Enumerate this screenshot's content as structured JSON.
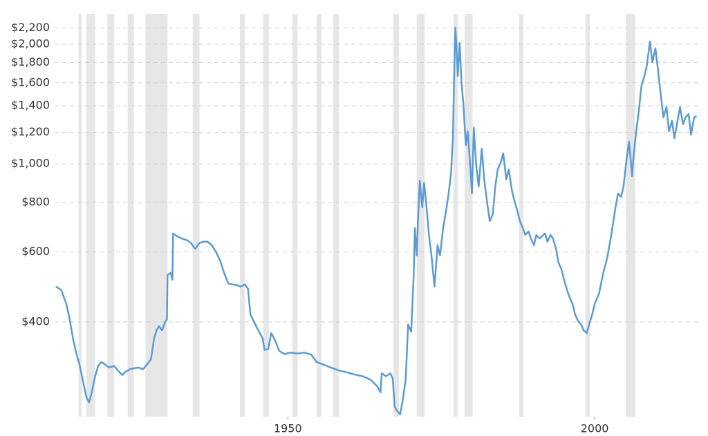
{
  "chart_data": {
    "type": "line",
    "log_scale": true,
    "grid": true,
    "color": "#5a9bd4",
    "recession_color": "#e6e6e6",
    "xlim": [
      1912,
      2017
    ],
    "xticks": [
      1950,
      2000
    ],
    "ylim": [
      231,
      2386
    ],
    "yticks": [
      {
        "value": 400,
        "label": "$400"
      },
      {
        "value": 600,
        "label": "$600"
      },
      {
        "value": 800,
        "label": "$800"
      },
      {
        "value": 1000,
        "label": "$1,000"
      },
      {
        "value": 1200,
        "label": "$1,200"
      },
      {
        "value": 1400,
        "label": "$1,400"
      },
      {
        "value": 1600,
        "label": "$1,600"
      },
      {
        "value": 1800,
        "label": "$1,800"
      },
      {
        "value": 2000,
        "label": "$2,000"
      },
      {
        "value": 2200,
        "label": "$2,200"
      }
    ],
    "recessions": [
      [
        1915.9,
        1916.4
      ],
      [
        1917.2,
        1918.6
      ],
      [
        1920.6,
        1921.7
      ],
      [
        1923.9,
        1924.9
      ],
      [
        1926.8,
        1930.4
      ],
      [
        1934.5,
        1935.6
      ],
      [
        1942.2,
        1943.0
      ],
      [
        1946.0,
        1946.9
      ],
      [
        1950.7,
        1951.6
      ],
      [
        1954.7,
        1955.5
      ],
      [
        1957.4,
        1958.3
      ],
      [
        1967.2,
        1968.1
      ],
      [
        1971.0,
        1972.3
      ],
      [
        1977.0,
        1977.7
      ],
      [
        1978.8,
        1980.1
      ],
      [
        1987.7,
        1988.4
      ],
      [
        1998.5,
        1999.2
      ],
      [
        2005.1,
        2006.6
      ]
    ],
    "x": [
      1912.2,
      1913.1,
      1913.9,
      1914.4,
      1915.0,
      1915.5,
      1916.1,
      1916.7,
      1917.2,
      1917.6,
      1918.0,
      1918.6,
      1919.1,
      1919.6,
      1920.3,
      1920.9,
      1921.7,
      1922.3,
      1923.0,
      1923.6,
      1924.3,
      1925.0,
      1925.7,
      1926.4,
      1927.0,
      1927.7,
      1928.2,
      1928.6,
      1929.0,
      1929.5,
      1930.0,
      1930.3,
      1930.4,
      1930.9,
      1931.2,
      1931.3,
      1932.0,
      1932.7,
      1933.6,
      1934.2,
      1934.9,
      1935.6,
      1936.3,
      1936.9,
      1937.6,
      1938.3,
      1939.0,
      1939.6,
      1940.3,
      1941.0,
      1941.7,
      1942.3,
      1943.0,
      1943.5,
      1943.9,
      1944.6,
      1945.3,
      1945.9,
      1946.2,
      1946.8,
      1947.3,
      1947.9,
      1948.6,
      1949.5,
      1950.4,
      1951.6,
      1952.7,
      1953.8,
      1954.7,
      1955.9,
      1957.0,
      1958.3,
      1959.5,
      1960.8,
      1962.2,
      1963.5,
      1964.6,
      1965.1,
      1965.3,
      1966.0,
      1966.7,
      1967.1,
      1967.4,
      1967.8,
      1968.3,
      1968.7,
      1969.2,
      1969.6,
      1970.1,
      1970.5,
      1970.7,
      1971.0,
      1971.2,
      1971.5,
      1971.9,
      1972.2,
      1972.5,
      1973.0,
      1973.4,
      1973.9,
      1974.4,
      1974.8,
      1975.3,
      1975.7,
      1976.2,
      1976.6,
      1976.9,
      1977.1,
      1977.3,
      1977.5,
      1977.7,
      1978.0,
      1978.3,
      1978.6,
      1979.0,
      1979.3,
      1979.8,
      1980.0,
      1980.3,
      1980.7,
      1981.1,
      1981.6,
      1982.0,
      1982.5,
      1982.9,
      1983.4,
      1983.8,
      1984.2,
      1984.7,
      1985.1,
      1985.6,
      1986.0,
      1986.5,
      1986.9,
      1987.4,
      1987.8,
      1988.3,
      1988.7,
      1989.2,
      1989.6,
      1990.1,
      1990.5,
      1991.0,
      1991.4,
      1991.9,
      1992.3,
      1992.8,
      1993.2,
      1993.7,
      1994.1,
      1994.6,
      1995.0,
      1995.5,
      1995.9,
      1996.4,
      1996.8,
      1997.3,
      1997.8,
      1998.2,
      1998.7,
      1999.1,
      1999.6,
      2000.0,
      2000.7,
      2001.4,
      2002.0,
      2002.7,
      2003.4,
      2003.8,
      2004.3,
      2004.7,
      2005.2,
      2005.6,
      2006.1,
      2006.3,
      2006.7,
      2007.2,
      2007.6,
      2008.1,
      2008.5,
      2009.0,
      2009.4,
      2009.9,
      2010.3,
      2010.8,
      2011.2,
      2011.7,
      2012.1,
      2012.6,
      2013.0,
      2013.5,
      2013.9,
      2014.4,
      2014.8,
      2015.3,
      2015.7,
      2016.2,
      2016.6
    ],
    "values": [
      491,
      481,
      444,
      410,
      363,
      335,
      310,
      280,
      258,
      251,
      264,
      292,
      310,
      317,
      312,
      307,
      310,
      302,
      294,
      300,
      304,
      306,
      307,
      304,
      312,
      322,
      363,
      381,
      390,
      381,
      400,
      406,
      525,
      532,
      511,
      668,
      657,
      649,
      642,
      632,
      611,
      632,
      637,
      637,
      624,
      600,
      569,
      532,
      500,
      497,
      495,
      491,
      497,
      485,
      418,
      397,
      378,
      363,
      340,
      342,
      375,
      360,
      338,
      332,
      335,
      333,
      335,
      331,
      317,
      312,
      307,
      302,
      299,
      295,
      292,
      286,
      275,
      266,
      297,
      292,
      297,
      288,
      245,
      239,
      234,
      253,
      286,
      394,
      378,
      521,
      689,
      588,
      718,
      906,
      778,
      895,
      809,
      662,
      588,
      491,
      624,
      588,
      689,
      747,
      842,
      950,
      1160,
      1664,
      2203,
      1954,
      1664,
      2016,
      1599,
      1418,
      1115,
      1208,
      950,
      842,
      1233,
      989,
      877,
      1093,
      913,
      793,
      718,
      747,
      877,
      969,
      1009,
      1063,
      913,
      969,
      859,
      809,
      762,
      718,
      689,
      662,
      676,
      649,
      624,
      662,
      649,
      657,
      668,
      637,
      662,
      649,
      611,
      564,
      542,
      511,
      481,
      462,
      444,
      418,
      402,
      394,
      381,
      375,
      394,
      418,
      444,
      471,
      532,
      576,
      662,
      778,
      842,
      826,
      877,
      1029,
      1138,
      931,
      1029,
      1184,
      1362,
      1567,
      1664,
      1767,
      2033,
      1803,
      1954,
      1732,
      1476,
      1309,
      1390,
      1208,
      1283,
      1160,
      1283,
      1390,
      1258,
      1309,
      1335,
      1184,
      1309,
      1320
    ]
  }
}
